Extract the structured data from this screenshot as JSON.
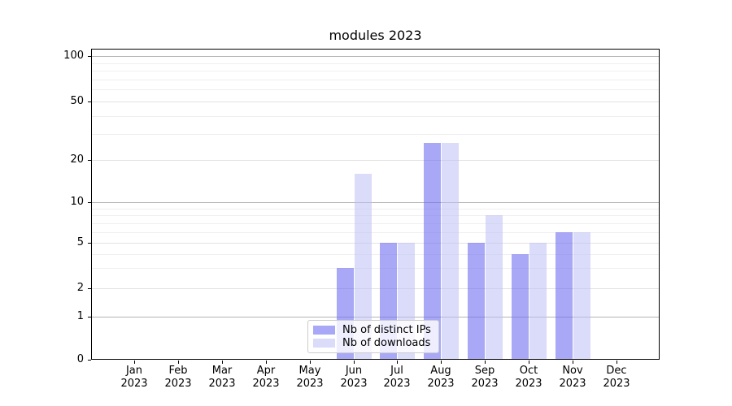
{
  "figure": {
    "title": "modules 2023"
  },
  "chart_data": {
    "type": "bar",
    "title": "modules 2023",
    "categories": [
      "Jan 2023",
      "Feb 2023",
      "Mar 2023",
      "Apr 2023",
      "May 2023",
      "Jun 2023",
      "Jul 2023",
      "Aug 2023",
      "Sep 2023",
      "Oct 2023",
      "Nov 2023",
      "Dec 2023"
    ],
    "x_tick_months": [
      "Jan",
      "Feb",
      "Mar",
      "Apr",
      "May",
      "Jun",
      "Jul",
      "Aug",
      "Sep",
      "Oct",
      "Nov",
      "Dec"
    ],
    "x_tick_year": "2023",
    "series": [
      {
        "name": "Nb of distinct IPs",
        "color": "rgba(110,110,242,0.6)",
        "values": [
          0,
          0,
          0,
          0,
          0,
          3,
          5,
          26,
          5,
          4,
          6,
          0
        ]
      },
      {
        "name": "Nb of downloads",
        "color": "rgba(190,190,245,0.55)",
        "values": [
          0,
          0,
          0,
          0,
          0,
          16,
          5,
          26,
          8,
          5,
          6,
          0
        ]
      }
    ],
    "xlabel": "",
    "ylabel": "",
    "ylim": [
      0,
      100
    ],
    "yscale": "log above 1 with linear segment 0-1 (symlog-like)",
    "yticks": [
      0,
      1,
      2,
      5,
      10,
      20,
      50,
      100
    ],
    "ytick_labels": [
      "0",
      "1",
      "2",
      "5",
      "10",
      "20",
      "50",
      "100"
    ],
    "grid_decade_values": [
      1,
      10,
      100
    ],
    "grid_submajor_values": [
      2,
      5,
      20,
      50
    ],
    "grid_minor_values": [
      3,
      4,
      6,
      7,
      8,
      9,
      30,
      40,
      60,
      70,
      80,
      90
    ],
    "grid": "horizontal only",
    "legend_position": "inside axes, lower center"
  },
  "legend": {
    "items": [
      {
        "label": "Nb of distinct IPs",
        "color": "rgba(110,110,242,0.6)"
      },
      {
        "label": "Nb of downloads",
        "color": "rgba(190,190,245,0.55)"
      }
    ]
  },
  "colors": {
    "background": "#ffffff",
    "spine": "#000000",
    "grid_decade": "#b4b4b4",
    "grid_submajor": "#e2e2e2",
    "grid_minor": "#efefef",
    "text": "#000000",
    "legend_border": "#cccccc"
  }
}
